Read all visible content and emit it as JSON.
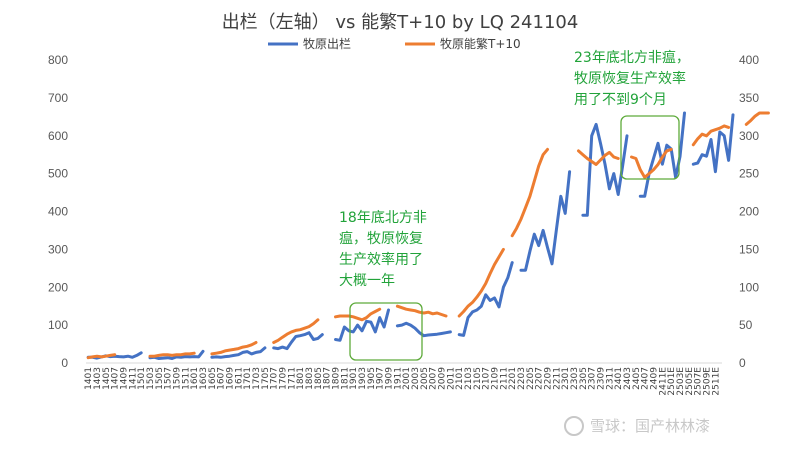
{
  "chart_data": {
    "type": "line",
    "title": "出栏（左轴） vs 能繁T+10 by LQ 241104",
    "legend_position": "top",
    "y_left": {
      "ticks": [
        0,
        100,
        200,
        300,
        400,
        500,
        600,
        700,
        800
      ],
      "range": [
        0,
        800
      ]
    },
    "y_right": {
      "ticks": [
        0,
        50,
        100,
        150,
        200,
        250,
        300,
        350,
        400
      ],
      "range": [
        0,
        400
      ]
    },
    "grid": false,
    "colors": {
      "series1": "#4472c4",
      "series2": "#ed7d31",
      "annotation": "#22a33a"
    },
    "x_labels": [
      "1401",
      "1403",
      "1405",
      "1407",
      "1409",
      "1411",
      "1501",
      "1503",
      "1505",
      "1507",
      "1509",
      "1511",
      "1601",
      "1603",
      "1605",
      "1607",
      "1609",
      "1611",
      "1701",
      "1703",
      "1705",
      "1707",
      "1709",
      "1711",
      "1801",
      "1803",
      "1805",
      "1807",
      "1809",
      "1811",
      "1901",
      "1903",
      "1905",
      "1907",
      "1909",
      "1911",
      "2001",
      "2003",
      "2005",
      "2007",
      "2009",
      "2011",
      "2101",
      "2103",
      "2105",
      "2107",
      "2109",
      "2111",
      "2201",
      "2203",
      "2205",
      "2207",
      "2209",
      "2211",
      "2301",
      "2303",
      "2305",
      "2307",
      "2309",
      "2311",
      "2401",
      "2403",
      "2405",
      "2407",
      "2409",
      "2411E",
      "2501E",
      "2503E",
      "2505E",
      "2507E",
      "2509E",
      "2511E"
    ],
    "series": [
      {
        "name": "牧原出栏",
        "axis": "left",
        "segments": [
          {
            "start": 0,
            "values": [
              15,
              15,
              13,
              16,
              19,
              17,
              18,
              17,
              16,
              18,
              15,
              20,
              27
            ]
          },
          {
            "start": 14,
            "values": [
              14,
              15,
              12,
              13,
              14,
              12,
              16,
              15,
              17,
              16,
              17,
              16,
              31
            ]
          },
          {
            "start": 28,
            "values": [
              15,
              16,
              15,
              17,
              18,
              20,
              22,
              28,
              30,
              24,
              28,
              30,
              40
            ]
          },
          {
            "start": 42,
            "values": [
              40,
              38,
              42,
              38,
              55,
              70,
              72,
              75,
              80,
              62,
              65,
              75
            ]
          },
          {
            "start": 56,
            "values": [
              62,
              60,
              95,
              85,
              82,
              100,
              85,
              110,
              108,
              82,
              120,
              95,
              140
            ]
          },
          {
            "start": 70,
            "values": [
              98,
              100,
              105,
              100,
              92,
              80,
              72,
              74,
              75,
              76,
              78,
              80,
              82
            ]
          },
          {
            "start": 84,
            "values": [
              75,
              73,
              120,
              135,
              140,
              150,
              180,
              165,
              172,
              148,
              200,
              225,
              265
            ]
          },
          {
            "start": 98,
            "values": [
              245,
              245,
              295,
              340,
              310,
              350,
              305,
              262,
              352,
              440,
              395,
              505
            ]
          },
          {
            "start": 112,
            "values": [
              390,
              390,
              600,
              630,
              580,
              525,
              460,
              500,
              445,
              520,
              600
            ]
          },
          {
            "start": 125,
            "values": [
              440,
              440,
              500,
              540,
              580,
              525,
              575,
              565,
              490,
              545,
              660
            ]
          },
          {
            "start": 137,
            "values": [
              525,
              528,
              550,
              546,
              590,
              505,
              610,
              600,
              535,
              655
            ]
          }
        ]
      },
      {
        "name": "牧原能繁T+10",
        "axis": "right",
        "segments": [
          {
            "start": 0,
            "values": [
              7,
              8,
              9,
              8,
              9,
              10,
              11
            ]
          },
          {
            "start": 14,
            "values": [
              9,
              9,
              10,
              11,
              11,
              10,
              11,
              11,
              12,
              12,
              13
            ]
          },
          {
            "start": 28,
            "values": [
              12,
              13,
              14,
              16,
              17,
              18,
              19,
              21,
              22,
              24,
              27
            ]
          },
          {
            "start": 42,
            "values": [
              27,
              30,
              34,
              38,
              41,
              43,
              44,
              46,
              48,
              52,
              57
            ]
          },
          {
            "start": 56,
            "values": [
              61,
              62,
              62,
              62,
              61,
              59,
              57,
              60,
              65,
              68,
              71
            ]
          },
          {
            "start": 70,
            "values": [
              75,
              73,
              71,
              70,
              69,
              67,
              66,
              67,
              65,
              66,
              64,
              62
            ]
          },
          {
            "start": 84,
            "values": [
              62,
              68,
              75,
              80,
              87,
              95,
              105,
              118,
              130,
              140,
              150
            ]
          },
          {
            "start": 96,
            "values": [
              168,
              178,
              190,
              205,
              220,
              240,
              260,
              275,
              282
            ]
          },
          {
            "start": 111,
            "values": [
              280,
              275,
              270,
              266,
              262,
              268,
              274,
              278,
              272,
              270
            ]
          },
          {
            "start": 123,
            "values": [
              272,
              270,
              255,
              245,
              250,
              255,
              262,
              272,
              280,
              282
            ]
          },
          {
            "start": 137,
            "values": [
              288,
              296,
              302,
              300,
              306,
              308,
              310,
              313,
              311
            ]
          },
          {
            "start": 149,
            "values": [
              315,
              320,
              326,
              330,
              330,
              330
            ]
          }
        ]
      }
    ],
    "annotations": [
      {
        "lines": [
          "18年底北方非",
          "瘟，牧原恢复",
          "生产效率用了",
          "大概一年"
        ]
      },
      {
        "lines": [
          "23年底北方非瘟，",
          "牧原恢复生产效率",
          "用了不到9个月"
        ]
      }
    ]
  },
  "watermark": "雪球：国产林林漆"
}
